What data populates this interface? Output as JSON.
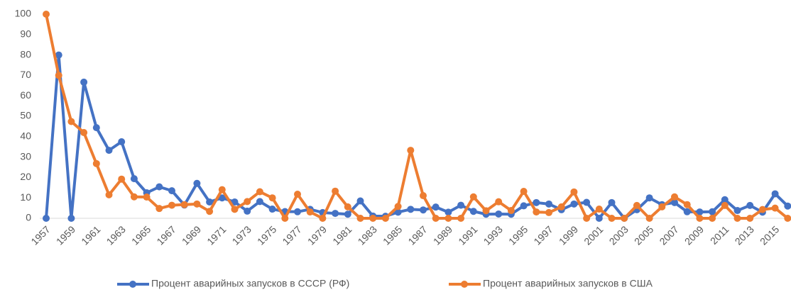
{
  "chart_data": {
    "type": "line",
    "categories": [
      "1957",
      null,
      "1959",
      null,
      "1961",
      null,
      "1963",
      null,
      "1965",
      null,
      "1967",
      null,
      "1969",
      null,
      "1971",
      null,
      "1973",
      null,
      "1975",
      null,
      "1977",
      null,
      "1979",
      null,
      "1981",
      null,
      "1983",
      null,
      "1985",
      null,
      "1987",
      null,
      "1989",
      null,
      "1991",
      null,
      "1993",
      null,
      "1995",
      null,
      "1997",
      null,
      "1999",
      null,
      "2001",
      null,
      "2003",
      null,
      "2005",
      null,
      "2007",
      null,
      "2009",
      null,
      "2011",
      null,
      "2013",
      null,
      "2015",
      null
    ],
    "series": [
      {
        "name": "Процент аварийных запусков в СССР (РФ)",
        "color": "#4472c4",
        "values": [
          0,
          80,
          0,
          66.7,
          44.4,
          33.3,
          37.5,
          19.4,
          12.5,
          15.4,
          13.5,
          6.5,
          17.1,
          8,
          10,
          8,
          3.5,
          8.2,
          4.5,
          3.3,
          3.2,
          4.4,
          2.8,
          2.4,
          2,
          8.5,
          1.1,
          1,
          3,
          4.4,
          4.1,
          5.5,
          3,
          6.4,
          3.4,
          2,
          2.1,
          2,
          6.1,
          7.7,
          7,
          4.2,
          7,
          7.8,
          0,
          7.7,
          0,
          4.2,
          10,
          6.7,
          7.7,
          3.2,
          3.1,
          3.2,
          9.1,
          3.8,
          6.3,
          3,
          12,
          6
        ]
      },
      {
        "name": "Процент аварийных запусков в США",
        "color": "#ed7d31",
        "values": [
          100,
          70,
          47.4,
          42,
          26.8,
          11.5,
          19.2,
          10.5,
          10.4,
          4.8,
          6.4,
          6.7,
          7,
          3.4,
          14,
          4.4,
          8.2,
          13,
          10,
          0,
          11.8,
          3.1,
          0,
          13.3,
          5.6,
          0,
          0,
          0,
          5.8,
          33.3,
          11.1,
          0,
          0,
          0,
          10.5,
          3.7,
          8.1,
          3.8,
          13.2,
          3.1,
          2.8,
          5.6,
          12.9,
          0,
          4.5,
          0,
          0,
          6.3,
          0,
          5.6,
          10.5,
          6.7,
          0,
          0,
          6.3,
          0,
          0,
          4.3,
          5,
          0
        ]
      }
    ],
    "ylim": [
      0,
      100
    ],
    "yticks": [
      0,
      10,
      20,
      30,
      40,
      50,
      60,
      70,
      80,
      90,
      100
    ],
    "grid": false,
    "legend": "bottom"
  }
}
